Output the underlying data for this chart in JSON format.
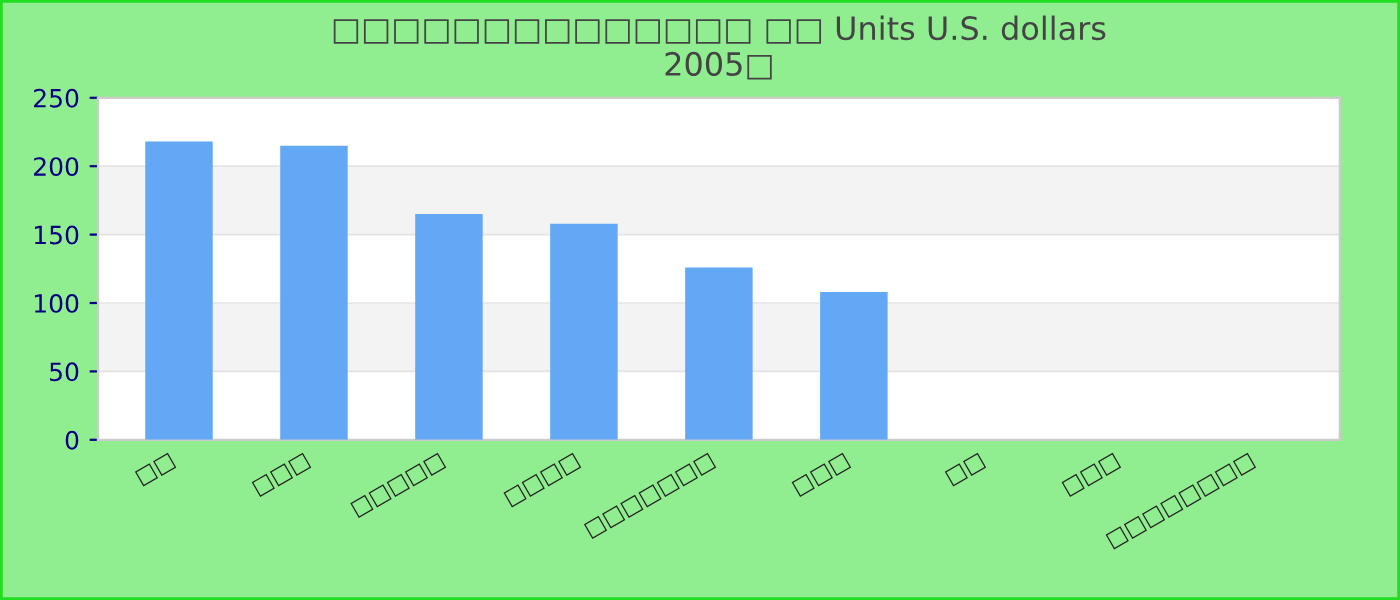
{
  "chart_data": {
    "type": "bar",
    "title": "□□□□□□□□□□□□□□ □□ Units U.S. dollars\n2005□",
    "categories": [
      "□□",
      "□□□",
      "□□□□□",
      "□□□□",
      "□□□□□□□",
      "□□□",
      "□□",
      "□□□",
      "□□□□□□□□"
    ],
    "values": [
      218,
      215,
      165,
      158,
      126,
      108,
      null,
      null,
      null
    ],
    "color": "#62a8f4",
    "ylim": [
      0,
      250
    ],
    "yticks": [
      0,
      50,
      100,
      150,
      200,
      250
    ],
    "grid": "y"
  }
}
